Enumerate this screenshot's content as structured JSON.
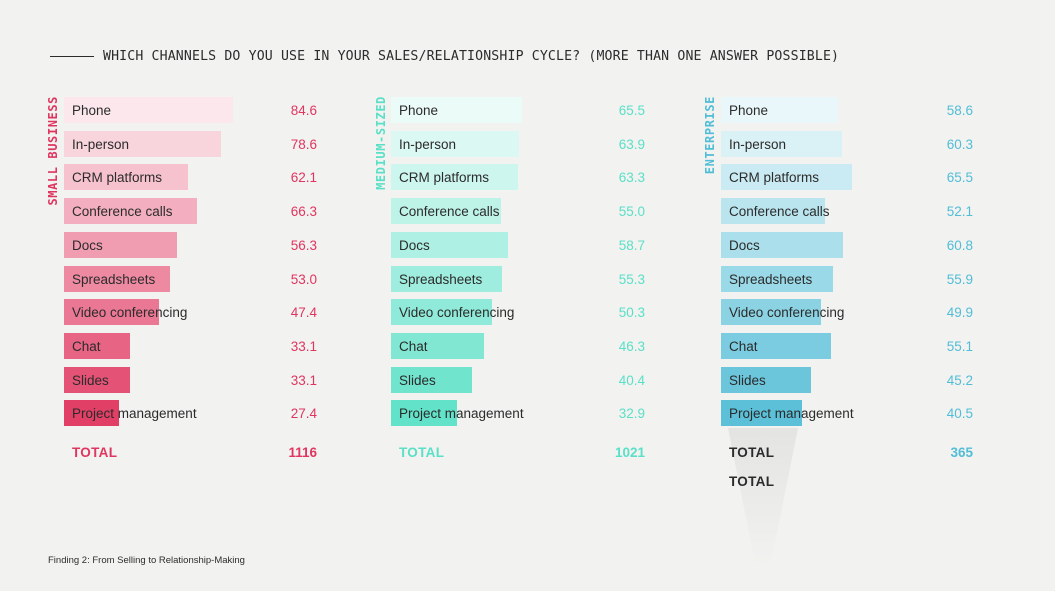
{
  "header": {
    "title": "WHICH CHANNELS DO YOU USE IN YOUR SALES/RELATIONSHIP CYCLE? (MORE THAN ONE ANSWER POSSIBLE)"
  },
  "footer": {
    "text": "Finding 2: From Selling to Relationship-Making"
  },
  "colors": {
    "small": "#e0355f",
    "medium": "#5ae0c6",
    "enterprise": "#52bdd6",
    "text": "#2b2b2b"
  },
  "chart_data": {
    "type": "bar",
    "orientation": "horizontal",
    "categories": [
      "Phone",
      "In-person",
      "CRM platforms",
      "Conference calls",
      "Docs",
      "Spreadsheets",
      "Video conferencing",
      "Chat",
      "Slides",
      "Project management"
    ],
    "xlim": [
      0,
      100
    ],
    "grid": false,
    "series": [
      {
        "name": "SMALL BUSINESS",
        "values": [
          84.6,
          78.6,
          62.1,
          66.3,
          56.3,
          53.0,
          47.4,
          33.1,
          33.1,
          27.4
        ],
        "display": [
          "84.6",
          "78.6",
          "62.1",
          "66.3",
          "56.3",
          "53.0",
          "47.4",
          "33.1",
          "33.1",
          "27.4"
        ],
        "total_label": "TOTAL",
        "total": "1116"
      },
      {
        "name": "MEDIUM-SIZED",
        "values": [
          65.5,
          63.9,
          63.3,
          55.0,
          58.7,
          55.3,
          50.3,
          46.3,
          40.4,
          32.9
        ],
        "display": [
          "65.5",
          "63.9",
          "63.3",
          "55.0",
          "58.7",
          "55.3",
          "50.3",
          "46.3",
          "40.4",
          "32.9"
        ],
        "total_label": "TOTAL",
        "total": "1021"
      },
      {
        "name": "ENTERPRISE",
        "values": [
          58.6,
          60.3,
          65.5,
          52.1,
          60.8,
          55.9,
          49.9,
          55.1,
          45.2,
          40.5
        ],
        "display": [
          "58.6",
          "60.3",
          "65.5",
          "52.1",
          "60.8",
          "55.9",
          "49.9",
          "55.1",
          "45.2",
          "40.5"
        ],
        "total_label": "TOTAL",
        "total": "365",
        "extra_label": "TOTAL"
      }
    ]
  }
}
